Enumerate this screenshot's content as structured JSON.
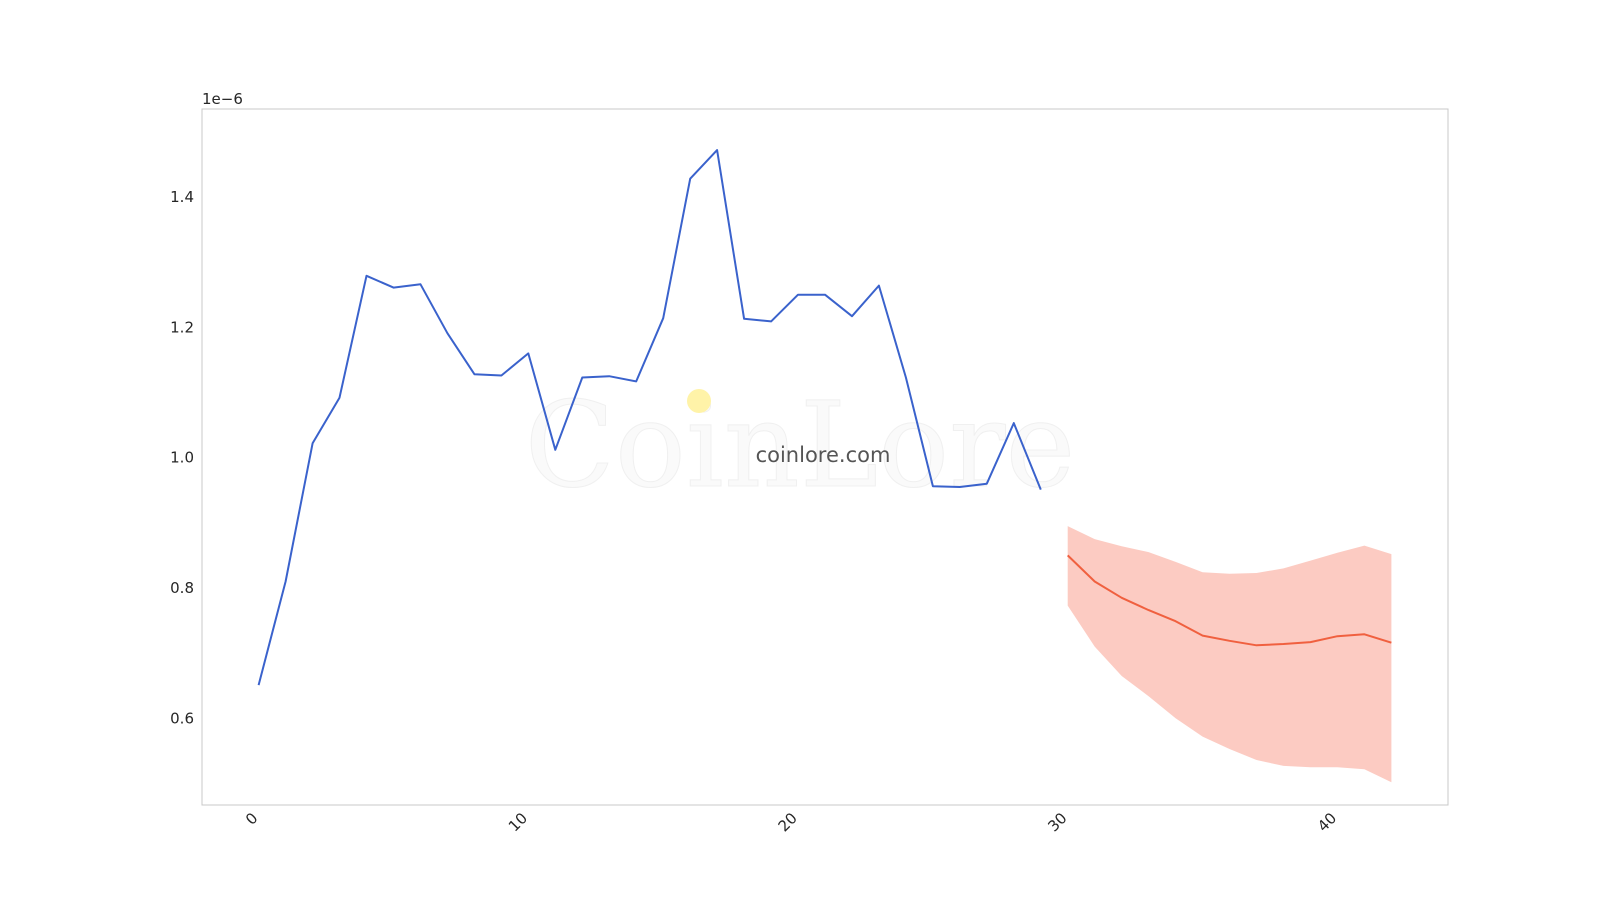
{
  "chart_data": {
    "type": "line",
    "title": "",
    "xlabel": "",
    "ylabel": "",
    "y_offset_label": "1e−6",
    "xlim": [
      -2.1,
      44.1
    ],
    "ylim": [
      0.467,
      1.535
    ],
    "x_ticks": [
      0,
      10,
      20,
      30,
      40
    ],
    "x_tick_labels": [
      "0",
      "10",
      "20",
      "30",
      "40"
    ],
    "x_tick_rotation_deg": -45,
    "y_ticks": [
      0.6,
      0.8,
      1.0,
      1.2,
      1.4
    ],
    "y_tick_labels": [
      "0.6",
      "0.8",
      "1.0",
      "1.2",
      "1.4"
    ],
    "grid": false,
    "legend": "none",
    "series": [
      {
        "kind": "line",
        "color": "#3a62cc",
        "x": [
          0,
          1,
          2,
          3,
          4,
          5,
          6,
          7,
          8,
          9,
          10,
          11,
          12,
          13,
          14,
          15,
          16,
          17,
          18,
          19,
          20,
          21,
          22,
          23,
          24,
          25,
          26,
          27,
          28,
          29
        ],
        "values": [
          0.651,
          0.81,
          1.022,
          1.092,
          1.279,
          1.261,
          1.266,
          1.191,
          1.128,
          1.126,
          1.16,
          1.012,
          1.123,
          1.125,
          1.117,
          1.214,
          1.428,
          1.472,
          1.213,
          1.209,
          1.25,
          1.25,
          1.217,
          1.264,
          1.123,
          0.956,
          0.955,
          0.96,
          1.053,
          0.951
        ]
      },
      {
        "kind": "line",
        "color": "#f0603f",
        "x": [
          30,
          31,
          32,
          33,
          34,
          35,
          36,
          37,
          38,
          39,
          40,
          41,
          42
        ],
        "values": [
          0.85,
          0.81,
          0.785,
          0.766,
          0.749,
          0.727,
          0.719,
          0.712,
          0.714,
          0.717,
          0.726,
          0.729,
          0.716
        ]
      },
      {
        "kind": "band",
        "color": "#fbb9ae",
        "x": [
          30,
          31,
          32,
          33,
          34,
          35,
          36,
          37,
          38,
          39,
          40,
          41,
          42
        ],
        "lower": [
          0.773,
          0.71,
          0.665,
          0.634,
          0.6,
          0.572,
          0.553,
          0.536,
          0.527,
          0.525,
          0.525,
          0.522,
          0.502
        ],
        "upper": [
          0.895,
          0.875,
          0.864,
          0.855,
          0.84,
          0.824,
          0.822,
          0.823,
          0.83,
          0.842,
          0.854,
          0.865,
          0.852
        ]
      }
    ]
  },
  "watermark": {
    "big_text": "CoinLore",
    "small_text": "coinlore.com",
    "dot_color": "#fff3a8"
  }
}
